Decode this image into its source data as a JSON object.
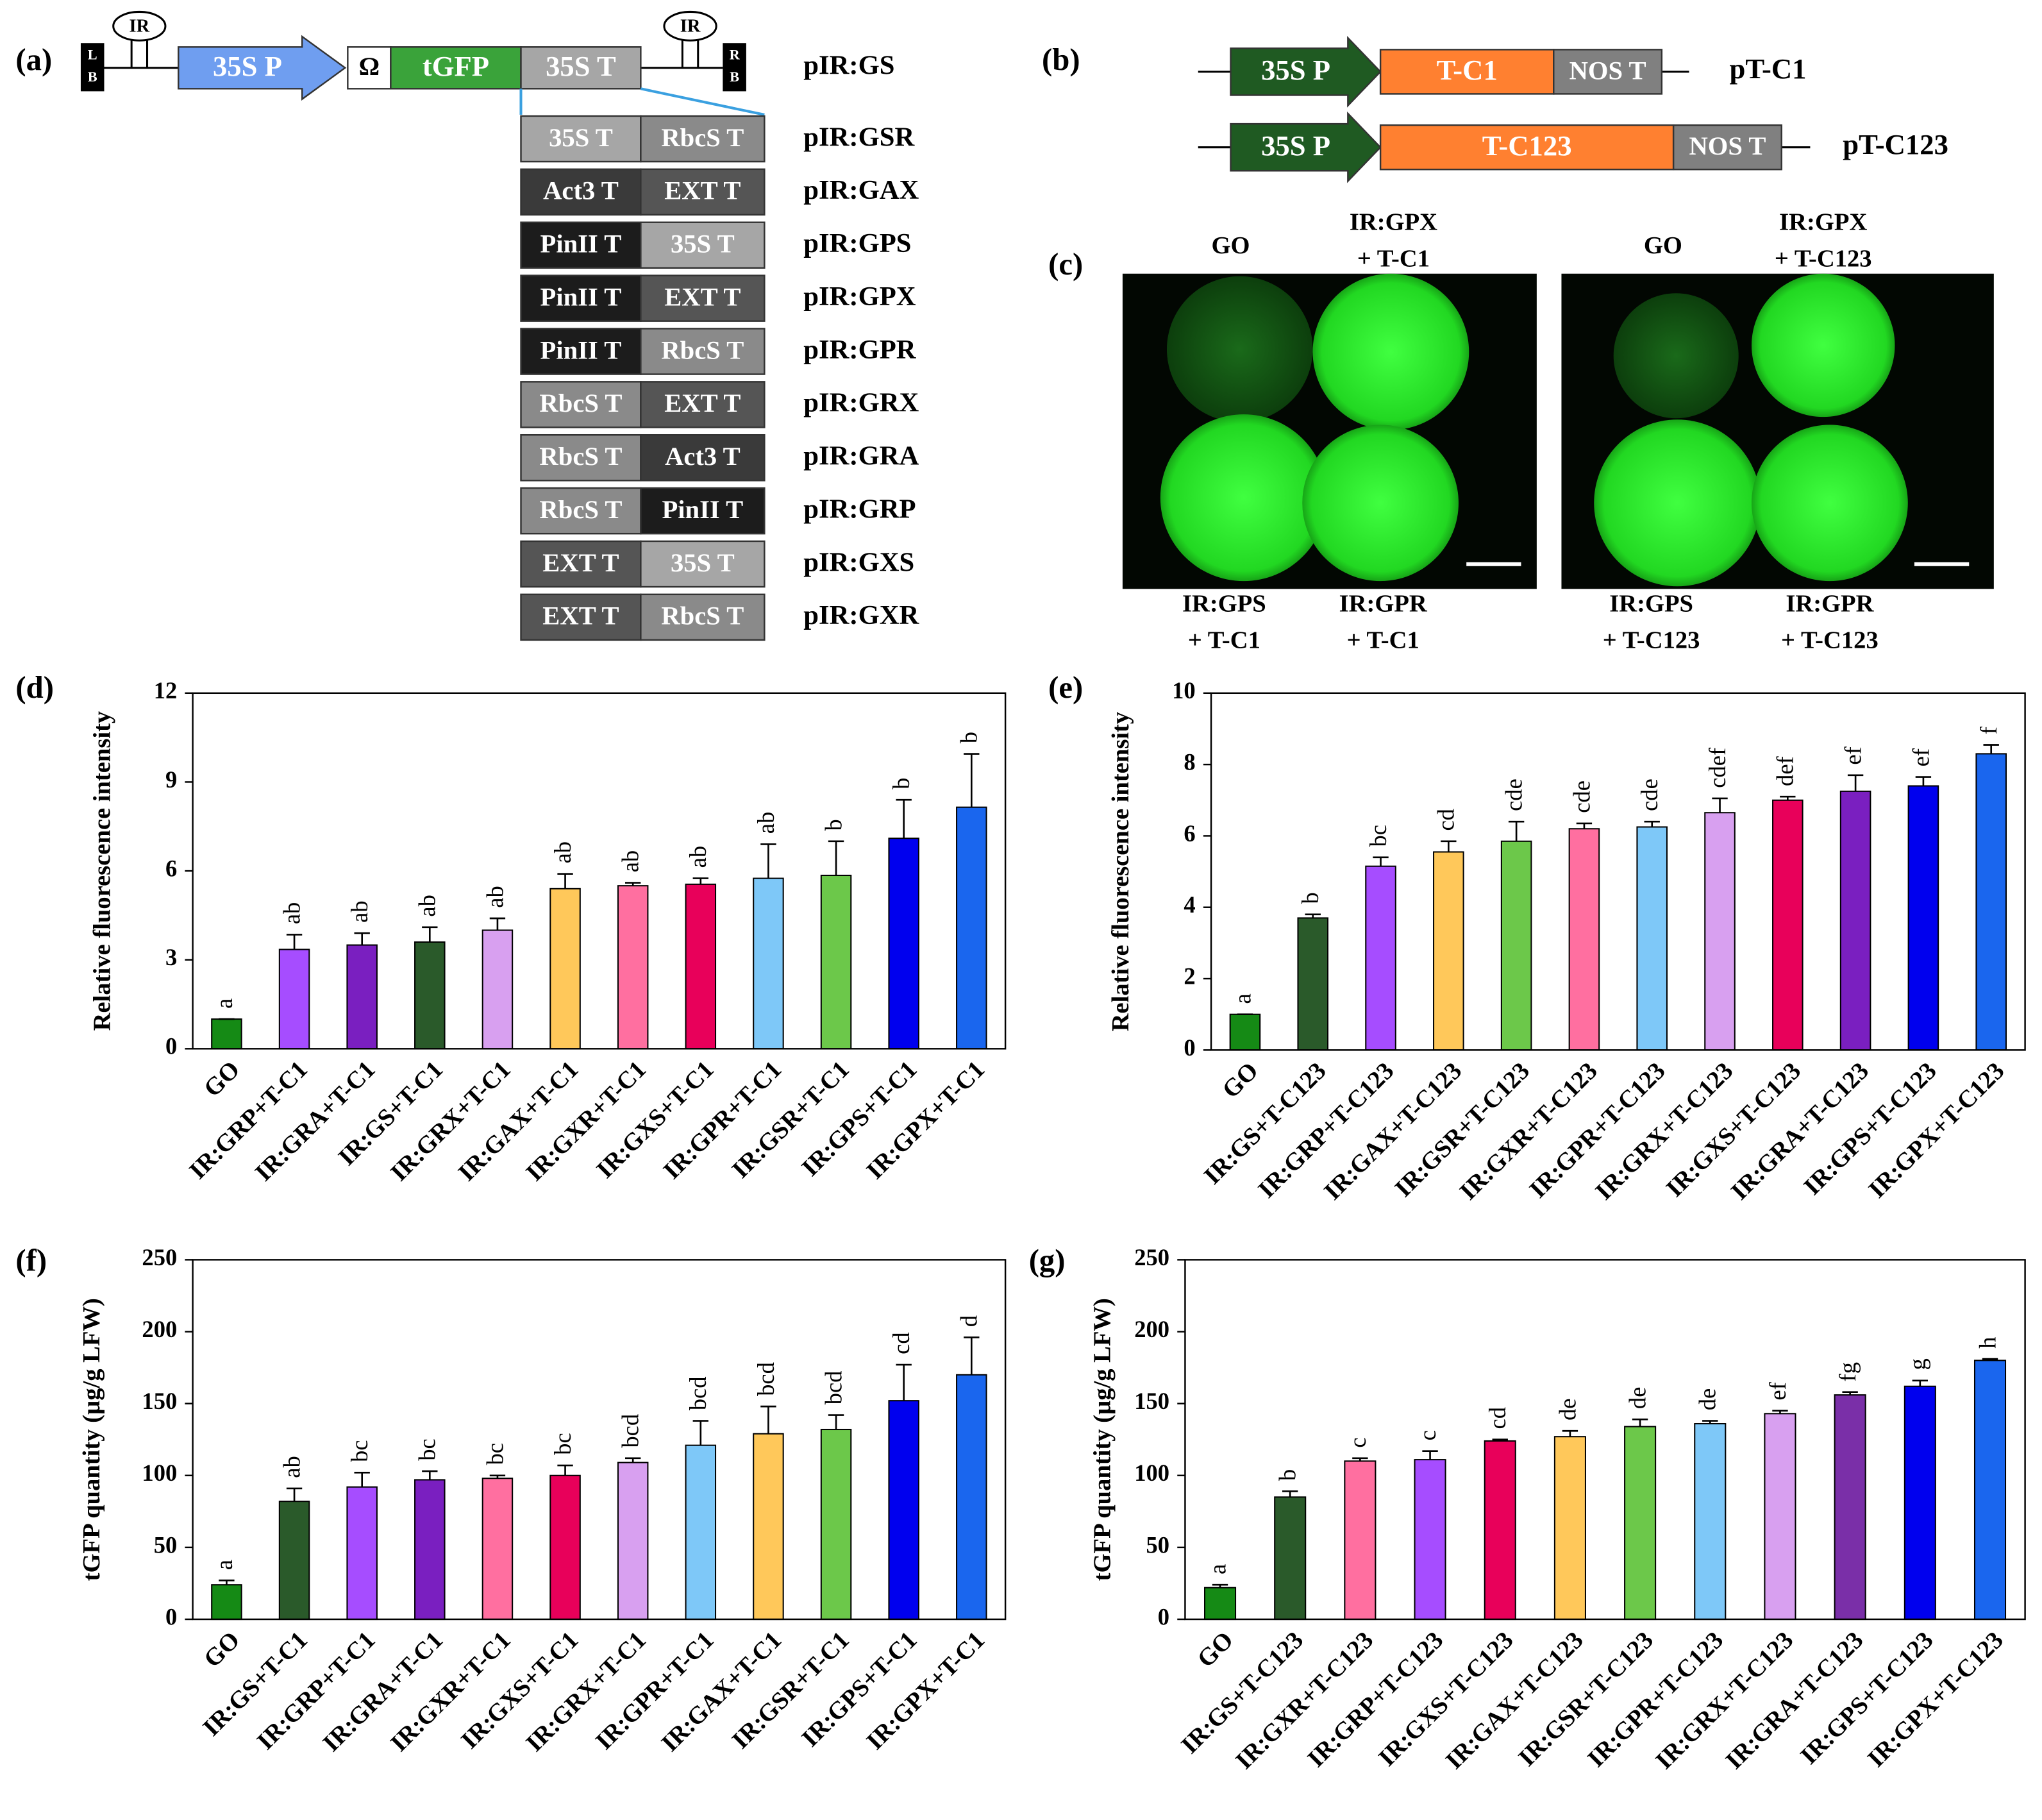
{
  "panels": {
    "a": {
      "label": "(a)",
      "ir": "IR",
      "left_border": [
        "L",
        "B"
      ],
      "right_border": [
        "R",
        "B"
      ],
      "promoter": "35S P",
      "omega": "Ω",
      "gene": "tGFP",
      "terminator": "35S T",
      "construct": "pIR:GS",
      "terminator_pairs": [
        {
          "parts": [
            {
              "text": "35S T",
              "color": "#a6a6a6"
            },
            {
              "text": "RbcS T",
              "color": "#8a8a8a"
            }
          ],
          "name": "pIR:GSR"
        },
        {
          "parts": [
            {
              "text": "Act3 T",
              "color": "#3a3a3a"
            },
            {
              "text": "EXT T",
              "color": "#555555"
            }
          ],
          "name": "pIR:GAX"
        },
        {
          "parts": [
            {
              "text": "PinII T",
              "color": "#1c1c1c"
            },
            {
              "text": "35S T",
              "color": "#a6a6a6"
            }
          ],
          "name": "pIR:GPS"
        },
        {
          "parts": [
            {
              "text": "PinII T",
              "color": "#1c1c1c"
            },
            {
              "text": "EXT T",
              "color": "#555555"
            }
          ],
          "name": "pIR:GPX"
        },
        {
          "parts": [
            {
              "text": "PinII T",
              "color": "#1c1c1c"
            },
            {
              "text": "RbcS T",
              "color": "#8a8a8a"
            }
          ],
          "name": "pIR:GPR"
        },
        {
          "parts": [
            {
              "text": "RbcS T",
              "color": "#8a8a8a"
            },
            {
              "text": "EXT T",
              "color": "#555555"
            }
          ],
          "name": "pIR:GRX"
        },
        {
          "parts": [
            {
              "text": "RbcS T",
              "color": "#8a8a8a"
            },
            {
              "text": "Act3 T",
              "color": "#3a3a3a"
            }
          ],
          "name": "pIR:GRA"
        },
        {
          "parts": [
            {
              "text": "RbcS T",
              "color": "#8a8a8a"
            },
            {
              "text": "PinII T",
              "color": "#1c1c1c"
            }
          ],
          "name": "pIR:GRP"
        },
        {
          "parts": [
            {
              "text": "EXT T",
              "color": "#555555"
            },
            {
              "text": "35S T",
              "color": "#a6a6a6"
            }
          ],
          "name": "pIR:GXS"
        },
        {
          "parts": [
            {
              "text": "EXT T",
              "color": "#555555"
            },
            {
              "text": "RbcS T",
              "color": "#8a8a8a"
            }
          ],
          "name": "pIR:GXR"
        }
      ]
    },
    "b": {
      "label": "(b)",
      "constructs": [
        {
          "promoter": "35S P",
          "gene": "T-C1",
          "terminator": "NOS T",
          "name": "pT-C1"
        },
        {
          "promoter": "35S P",
          "gene": "T-C123",
          "terminator": "NOS T",
          "name": "pT-C123"
        }
      ]
    },
    "c": {
      "label": "(c)",
      "images": [
        {
          "top_left": [
            "GO"
          ],
          "top_right": [
            "IR:GPX",
            "+ T-C1"
          ],
          "bottom_left": [
            "IR:GPS",
            "+ T-C1"
          ],
          "bottom_right": [
            "IR:GPR",
            "+ T-C1"
          ]
        },
        {
          "top_left": [
            "GO"
          ],
          "top_right": [
            "IR:GPX",
            "+ T-C123"
          ],
          "bottom_left": [
            "IR:GPS",
            "+ T-C123"
          ],
          "bottom_right": [
            "IR:GPR",
            "+ T-C123"
          ]
        }
      ]
    }
  },
  "chart_data": [
    {
      "type": "bar",
      "panel_label": "(d)",
      "y_label": "Relative fluorescence intensity",
      "categories": [
        "GO",
        "IR:GRP+T-C1",
        "IR:GRA+T-C1",
        "IR:GS+T-C1",
        "IR:GRX+T-C1",
        "IR:GAX+T-C1",
        "IR:GXR+T-C1",
        "IR:GXS+T-C1",
        "IR:GPR+T-C1",
        "IR:GSR+T-C1",
        "IR:GPS+T-C1",
        "IR:GPX+T-C1"
      ],
      "values": [
        1.0,
        3.35,
        3.5,
        3.6,
        4.0,
        5.4,
        5.5,
        5.55,
        5.75,
        5.85,
        7.1,
        8.15
      ],
      "errors": [
        0,
        0.5,
        0.4,
        0.5,
        0.4,
        0.5,
        0.1,
        0.2,
        1.15,
        1.15,
        1.3,
        1.8
      ],
      "annotations": [
        "a",
        "ab",
        "ab",
        "ab",
        "ab",
        "ab",
        "ab",
        "ab",
        "ab",
        "b",
        "b",
        "b"
      ],
      "colors": [
        "#158a15",
        "#a64dff",
        "#7a1fc0",
        "#2a5a2a",
        "#d8a0f0",
        "#ffc85a",
        "#ff6fa0",
        "#e8005a",
        "#7ec8f8",
        "#6cc84a",
        "#0000ee",
        "#1a66ee"
      ],
      "ylim": [
        0,
        12
      ],
      "yticks": [
        0,
        3,
        6,
        9,
        12
      ]
    },
    {
      "type": "bar",
      "panel_label": "(e)",
      "y_label": "Relative fluorescence intensity",
      "categories": [
        "GO",
        "IR:GS+T-C123",
        "IR:GRP+T-C123",
        "IR:GAX+T-C123",
        "IR:GSR+T-C123",
        "IR:GXR+T-C123",
        "IR:GPR+T-C123",
        "IR:GRX+T-C123",
        "IR:GXS+T-C123",
        "IR:GRA+T-C123",
        "IR:GPS+T-C123",
        "IR:GPX+T-C123"
      ],
      "values": [
        1.0,
        3.7,
        5.15,
        5.55,
        5.85,
        6.2,
        6.25,
        6.65,
        7.0,
        7.25,
        7.4,
        8.3
      ],
      "errors": [
        0,
        0.1,
        0.25,
        0.3,
        0.55,
        0.15,
        0.15,
        0.4,
        0.1,
        0.45,
        0.25,
        0.25
      ],
      "annotations": [
        "a",
        "b",
        "bc",
        "cd",
        "cde",
        "cde",
        "cde",
        "cdef",
        "def",
        "ef",
        "ef",
        "f"
      ],
      "colors": [
        "#158a15",
        "#2a5a2a",
        "#a64dff",
        "#ffc85a",
        "#6cc84a",
        "#ff6fa0",
        "#7ec8f8",
        "#d8a0f0",
        "#e8005a",
        "#7a1fc0",
        "#0000ee",
        "#1a66ee"
      ],
      "ylim": [
        0,
        10
      ],
      "yticks": [
        0,
        2,
        4,
        6,
        8,
        10
      ]
    },
    {
      "type": "bar",
      "panel_label": "(f)",
      "y_label": "tGFP quantity  (µg/g LFW)",
      "categories": [
        "GO",
        "IR:GS+T-C1",
        "IR:GRP+T-C1",
        "IR:GRA+T-C1",
        "IR:GXR+T-C1",
        "IR:GXS+T-C1",
        "IR:GRX+T-C1",
        "IR:GPR+T-C1",
        "IR:GAX+T-C1",
        "IR:GSR+T-C1",
        "IR:GPS+T-C1",
        "IR:GPX+T-C1"
      ],
      "values": [
        24,
        82,
        92,
        97,
        98,
        100,
        109,
        121,
        129,
        132,
        152,
        170
      ],
      "errors": [
        3,
        9,
        10,
        6,
        2,
        7,
        3,
        17,
        19,
        10,
        25,
        26
      ],
      "annotations": [
        "a",
        "ab",
        "bc",
        "bc",
        "bc",
        "bc",
        "bcd",
        "bcd",
        "bcd",
        "bcd",
        "cd",
        "d"
      ],
      "colors": [
        "#158a15",
        "#2a5a2a",
        "#a64dff",
        "#7a1fc0",
        "#ff6fa0",
        "#e8005a",
        "#d8a0f0",
        "#7ec8f8",
        "#ffc85a",
        "#6cc84a",
        "#0000ee",
        "#1a66ee"
      ],
      "ylim": [
        0,
        250
      ],
      "yticks": [
        0,
        50,
        100,
        150,
        200,
        250
      ]
    },
    {
      "type": "bar",
      "panel_label": "(g)",
      "y_label": "tGFP quantity  (µg/g LFW)",
      "categories": [
        "GO",
        "IR:GS+T-C123",
        "IR:GXR+T-C123",
        "IR:GRP+T-C123",
        "IR:GXS+T-C123",
        "IR:GAX+T-C123",
        "IR:GSR+T-C123",
        "IR:GPR+T-C123",
        "IR:GRX+T-C123",
        "IR:GRA+T-C123",
        "IR:GPS+T-C123",
        "IR:GPX+T-C123"
      ],
      "values": [
        22,
        85,
        110,
        111,
        124,
        127,
        134,
        136,
        143,
        156,
        162,
        180
      ],
      "errors": [
        2,
        4,
        2,
        6,
        1,
        4,
        5,
        2,
        2,
        2,
        4,
        1
      ],
      "annotations": [
        "a",
        "b",
        "c",
        "c",
        "cd",
        "de",
        "de",
        "de",
        "ef",
        "fg",
        "g",
        "h"
      ],
      "colors": [
        "#158a15",
        "#2a5a2a",
        "#ff6fa0",
        "#a64dff",
        "#e8005a",
        "#ffc85a",
        "#6cc84a",
        "#7ec8f8",
        "#d8a0f0",
        "#7a2fa8",
        "#0000ee",
        "#1a66ee"
      ],
      "ylim": [
        0,
        250
      ],
      "yticks": [
        0,
        50,
        100,
        150,
        200,
        250
      ]
    }
  ]
}
